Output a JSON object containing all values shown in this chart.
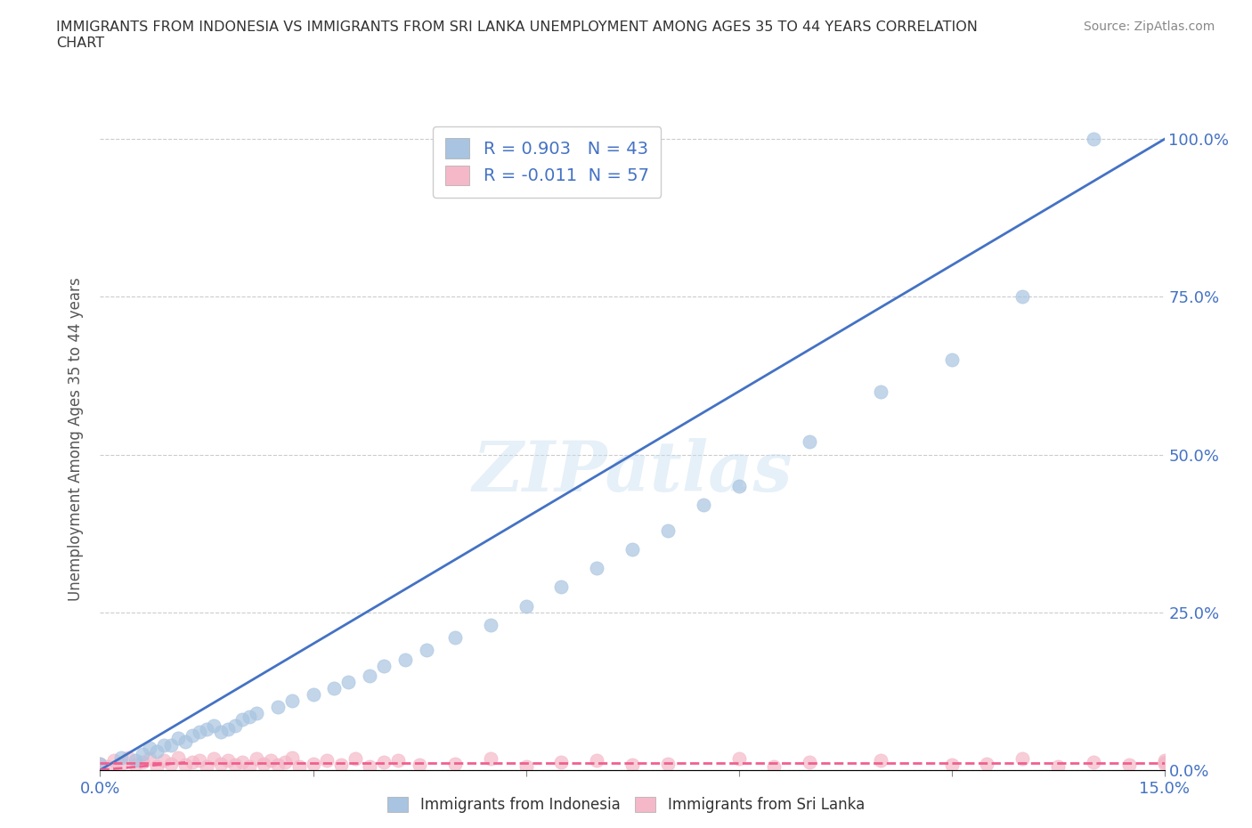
{
  "title": "IMMIGRANTS FROM INDONESIA VS IMMIGRANTS FROM SRI LANKA UNEMPLOYMENT AMONG AGES 35 TO 44 YEARS CORRELATION\nCHART",
  "source_text": "Source: ZipAtlas.com",
  "ylabel": "Unemployment Among Ages 35 to 44 years",
  "x_min": 0.0,
  "x_max": 0.15,
  "y_min": 0.0,
  "y_max": 1.05,
  "x_ticks": [
    0.0,
    0.03,
    0.06,
    0.09,
    0.12,
    0.15
  ],
  "x_tick_labels": [
    "0.0%",
    "",
    "",
    "",
    "",
    "15.0%"
  ],
  "y_tick_labels": [
    "0.0%",
    "25.0%",
    "50.0%",
    "75.0%",
    "100.0%"
  ],
  "y_ticks": [
    0.0,
    0.25,
    0.5,
    0.75,
    1.0
  ],
  "indonesia_color": "#a8c4e0",
  "srilanka_color": "#f4b8c8",
  "indonesia_line_color": "#4472c4",
  "srilanka_line_color": "#f06090",
  "r_indonesia": 0.903,
  "n_indonesia": 43,
  "r_srilanka": -0.011,
  "n_srilanka": 57,
  "watermark": "ZIPatlas",
  "legend_indonesia": "Immigrants from Indonesia",
  "legend_srilanka": "Immigrants from Sri Lanka",
  "indonesia_scatter_x": [
    0.0,
    0.003,
    0.005,
    0.006,
    0.007,
    0.008,
    0.009,
    0.01,
    0.011,
    0.012,
    0.013,
    0.014,
    0.015,
    0.016,
    0.017,
    0.018,
    0.019,
    0.02,
    0.021,
    0.022,
    0.025,
    0.027,
    0.03,
    0.033,
    0.035,
    0.038,
    0.04,
    0.043,
    0.046,
    0.05,
    0.055,
    0.06,
    0.065,
    0.07,
    0.075,
    0.08,
    0.085,
    0.09,
    0.1,
    0.11,
    0.12,
    0.13,
    0.14
  ],
  "indonesia_scatter_y": [
    0.01,
    0.02,
    0.015,
    0.025,
    0.035,
    0.03,
    0.04,
    0.04,
    0.05,
    0.045,
    0.055,
    0.06,
    0.065,
    0.07,
    0.06,
    0.065,
    0.07,
    0.08,
    0.085,
    0.09,
    0.1,
    0.11,
    0.12,
    0.13,
    0.14,
    0.15,
    0.165,
    0.175,
    0.19,
    0.21,
    0.23,
    0.26,
    0.29,
    0.32,
    0.35,
    0.38,
    0.42,
    0.45,
    0.52,
    0.6,
    0.65,
    0.75,
    1.0
  ],
  "srilanka_scatter_x": [
    0.0,
    0.001,
    0.002,
    0.003,
    0.004,
    0.005,
    0.006,
    0.007,
    0.008,
    0.009,
    0.01,
    0.011,
    0.012,
    0.013,
    0.014,
    0.015,
    0.016,
    0.017,
    0.018,
    0.019,
    0.02,
    0.021,
    0.022,
    0.023,
    0.024,
    0.025,
    0.026,
    0.027,
    0.028,
    0.03,
    0.032,
    0.034,
    0.036,
    0.038,
    0.04,
    0.042,
    0.045,
    0.05,
    0.055,
    0.06,
    0.065,
    0.07,
    0.075,
    0.08,
    0.09,
    0.095,
    0.1,
    0.11,
    0.12,
    0.125,
    0.13,
    0.135,
    0.14,
    0.145,
    0.15,
    0.15,
    0.15
  ],
  "srilanka_scatter_y": [
    0.01,
    0.005,
    0.015,
    0.01,
    0.02,
    0.008,
    0.012,
    0.018,
    0.006,
    0.015,
    0.01,
    0.02,
    0.008,
    0.012,
    0.016,
    0.005,
    0.018,
    0.01,
    0.015,
    0.008,
    0.012,
    0.005,
    0.018,
    0.01,
    0.015,
    0.008,
    0.012,
    0.02,
    0.005,
    0.01,
    0.015,
    0.008,
    0.018,
    0.005,
    0.012,
    0.015,
    0.008,
    0.01,
    0.018,
    0.005,
    0.012,
    0.015,
    0.008,
    0.01,
    0.018,
    0.005,
    0.012,
    0.015,
    0.008,
    0.01,
    0.018,
    0.005,
    0.012,
    0.008,
    0.015,
    0.01,
    0.012
  ]
}
